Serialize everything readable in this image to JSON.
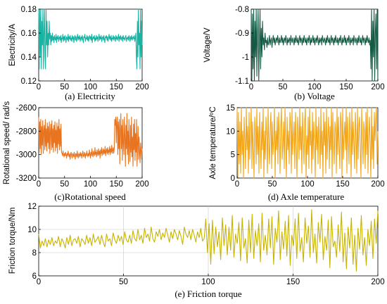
{
  "chart_data": [
    {
      "id": "a",
      "type": "line",
      "caption": "(a) Electricity",
      "ylabel": "Electricity/A",
      "xlim": [
        0,
        200
      ],
      "ylim": [
        0.12,
        0.18
      ],
      "xticks": [
        0,
        50,
        100,
        150,
        200
      ],
      "yticks": [
        0.12,
        0.14,
        0.16,
        0.18
      ],
      "ytick_labels": [
        "0.12",
        "0.14",
        "0.16",
        "0.18"
      ],
      "grid": false,
      "color": "#17b3a3",
      "x_range": [
        0,
        200
      ],
      "values": [
        0.18,
        0.13,
        0.18,
        0.14,
        0.18,
        0.13,
        0.17,
        0.15,
        0.18,
        0.13,
        0.16,
        0.18,
        0.14,
        0.13,
        0.18,
        0.15,
        0.17,
        0.14,
        0.16,
        0.15,
        0.17,
        0.155,
        0.16,
        0.15,
        0.158,
        0.153,
        0.16,
        0.154,
        0.157,
        0.152,
        0.158,
        0.155,
        0.154,
        0.159,
        0.152,
        0.157,
        0.155,
        0.158,
        0.153,
        0.156,
        0.157,
        0.154,
        0.158,
        0.152,
        0.156,
        0.155,
        0.159,
        0.153,
        0.157,
        0.154,
        0.158,
        0.155,
        0.152,
        0.157,
        0.156,
        0.154,
        0.159,
        0.153,
        0.157,
        0.155,
        0.158,
        0.154,
        0.156,
        0.153,
        0.158,
        0.155,
        0.157,
        0.152,
        0.156,
        0.158,
        0.154,
        0.157,
        0.153,
        0.156,
        0.159,
        0.154,
        0.157,
        0.155,
        0.158,
        0.153,
        0.156,
        0.157,
        0.154,
        0.158,
        0.155,
        0.152,
        0.157,
        0.156,
        0.159,
        0.153,
        0.156,
        0.155,
        0.158,
        0.154,
        0.157,
        0.153,
        0.156,
        0.158,
        0.155,
        0.157,
        0.154,
        0.159,
        0.152,
        0.156,
        0.157,
        0.155,
        0.158,
        0.153,
        0.156,
        0.154,
        0.158,
        0.155,
        0.157,
        0.153,
        0.156,
        0.159,
        0.154,
        0.157,
        0.155,
        0.158,
        0.153,
        0.156,
        0.157,
        0.154,
        0.158,
        0.155,
        0.152,
        0.157,
        0.156,
        0.158,
        0.154,
        0.157,
        0.153,
        0.156,
        0.159,
        0.155,
        0.157,
        0.154,
        0.158,
        0.153,
        0.156,
        0.155,
        0.158,
        0.154,
        0.157,
        0.156,
        0.153,
        0.158,
        0.155,
        0.157,
        0.154,
        0.156,
        0.159,
        0.153,
        0.157,
        0.155,
        0.158,
        0.154,
        0.156,
        0.157,
        0.153,
        0.158,
        0.155,
        0.156,
        0.154,
        0.157,
        0.158,
        0.153,
        0.156,
        0.155,
        0.157,
        0.154,
        0.158,
        0.156,
        0.153,
        0.157,
        0.155,
        0.158,
        0.154,
        0.156,
        0.157,
        0.155,
        0.158,
        0.153,
        0.156,
        0.16,
        0.14,
        0.13,
        0.17,
        0.14,
        0.18,
        0.15,
        0.16,
        0.13,
        0.18,
        0.14,
        0.17,
        0.15
      ]
    },
    {
      "id": "b",
      "type": "line",
      "caption": "(b) Voltage",
      "ylabel": "Voltage/V",
      "xlim": [
        0,
        200
      ],
      "ylim": [
        -1.1,
        -0.8
      ],
      "xticks": [
        0,
        50,
        100,
        150,
        200
      ],
      "yticks": [
        -1.1,
        -1.0,
        -0.9,
        -0.8
      ],
      "ytick_labels": [
        "-1.1",
        "-1",
        "-0.9",
        "-0.8"
      ],
      "grid": false,
      "color": "#145a45",
      "x_range": [
        0,
        200
      ],
      "values": [
        -0.8,
        -1.1,
        -0.82,
        -1.05,
        -0.8,
        -1.1,
        -0.85,
        -1.0,
        -0.8,
        -1.08,
        -0.9,
        -0.8,
        -1.1,
        -0.95,
        -0.8,
        -1.05,
        -0.88,
        -1.0,
        -0.85,
        -0.95,
        -0.92,
        -0.97,
        -0.9,
        -0.94,
        -0.93,
        -0.96,
        -0.92,
        -0.95,
        -0.94,
        -0.91,
        -0.95,
        -0.93,
        -0.92,
        -0.96,
        -0.93,
        -0.91,
        -0.94,
        -0.92,
        -0.95,
        -0.93,
        -0.92,
        -0.94,
        -0.91,
        -0.93,
        -0.95,
        -0.92,
        -0.94,
        -0.93,
        -0.91,
        -0.94,
        -0.92,
        -0.95,
        -0.93,
        -0.92,
        -0.94,
        -0.91,
        -0.93,
        -0.95,
        -0.92,
        -0.94,
        -0.93,
        -0.92,
        -0.95,
        -0.91,
        -0.93,
        -0.94,
        -0.92,
        -0.93,
        -0.95,
        -0.92,
        -0.94,
        -0.91,
        -0.93,
        -0.94,
        -0.92,
        -0.95,
        -0.93,
        -0.91,
        -0.94,
        -0.92,
        -0.93,
        -0.95,
        -0.92,
        -0.94,
        -0.91,
        -0.93,
        -0.94,
        -0.92,
        -0.95,
        -0.93,
        -0.92,
        -0.94,
        -0.91,
        -0.93,
        -0.95,
        -0.92,
        -0.94,
        -0.93,
        -0.91,
        -0.94,
        -0.92,
        -0.95,
        -0.93,
        -0.92,
        -0.94,
        -0.91,
        -0.93,
        -0.95,
        -0.92,
        -0.94,
        -0.93,
        -0.92,
        -0.95,
        -0.91,
        -0.93,
        -0.94,
        -0.92,
        -0.93,
        -0.95,
        -0.92,
        -0.94,
        -0.91,
        -0.93,
        -0.94,
        -0.92,
        -0.95,
        -0.93,
        -0.91,
        -0.94,
        -0.92,
        -0.93,
        -0.95,
        -0.92,
        -0.94,
        -0.91,
        -0.93,
        -0.94,
        -0.92,
        -0.95,
        -0.93,
        -0.92,
        -0.94,
        -0.91,
        -0.93,
        -0.95,
        -0.92,
        -0.94,
        -0.93,
        -0.91,
        -0.94,
        -0.92,
        -0.95,
        -0.93,
        -0.92,
        -0.94,
        -0.91,
        -0.93,
        -0.95,
        -0.92,
        -0.94,
        -0.93,
        -0.92,
        -0.95,
        -0.91,
        -0.93,
        -0.94,
        -0.92,
        -0.93,
        -0.95,
        -0.92,
        -0.94,
        -0.91,
        -0.93,
        -0.94,
        -0.92,
        -0.95,
        -0.93,
        -0.91,
        -0.94,
        -0.92,
        -0.93,
        -0.95,
        -0.92,
        -0.94,
        -0.91,
        -0.93,
        -0.94,
        -0.92,
        -0.95,
        -0.93,
        -1.05,
        -0.8,
        -1.1,
        -0.85,
        -1.0,
        -0.8,
        -1.1,
        -0.9,
        -0.82,
        -1.05,
        -0.8,
        -1.1
      ]
    },
    {
      "id": "c",
      "type": "line",
      "caption": "(c)Rotational speed",
      "ylabel": "Rotational speed/ rad/s",
      "xlim": [
        0,
        200
      ],
      "ylim": [
        -3200,
        -2600
      ],
      "xticks": [
        0,
        50,
        100,
        150,
        200
      ],
      "yticks": [
        -3200,
        -3000,
        -2800,
        -2600
      ],
      "ytick_labels": [
        "-3200",
        "-3000",
        "-2800",
        "-2600"
      ],
      "grid": false,
      "color": "#e8741f",
      "x_range": [
        0,
        200
      ],
      "values": [
        -2680,
        -2980,
        -2720,
        -2950,
        -2700,
        -3000,
        -2760,
        -2920,
        -2710,
        -2990,
        -2800,
        -2750,
        -2960,
        -2700,
        -2930,
        -2780,
        -2970,
        -2730,
        -2900,
        -2760,
        -2950,
        -2720,
        -2990,
        -2800,
        -2740,
        -2960,
        -2710,
        -2940,
        -2780,
        -2980,
        -2750,
        -2900,
        -2720,
        -2970,
        -2790,
        -2940,
        -2730,
        -2990,
        -2760,
        -2910,
        -2700,
        -2960,
        -2780,
        -2930,
        -2740,
        -2980,
        -2990,
        -3010,
        -2970,
        -3000,
        -3020,
        -2990,
        -3010,
        -2980,
        -3000,
        -3030,
        -2990,
        -3010,
        -2970,
        -3000,
        -3020,
        -2990,
        -3040,
        -3000,
        -2980,
        -3010,
        -3030,
        -2990,
        -3000,
        -3020,
        -2980,
        -3010,
        -3040,
        -2990,
        -3000,
        -3020,
        -2970,
        -3010,
        -3030,
        -2990,
        -3000,
        -3020,
        -2980,
        -3010,
        -2990,
        -3030,
        -3000,
        -2970,
        -3010,
        -3020,
        -2980,
        -3000,
        -3030,
        -2990,
        -3010,
        -2970,
        -3000,
        -3020,
        -2990,
        -3010,
        -2960,
        -3000,
        -3030,
        -2980,
        -3010,
        -2950,
        -3000,
        -3020,
        -2970,
        -2990,
        -3010,
        -2940,
        -3000,
        -2980,
        -3020,
        -2960,
        -2990,
        -3010,
        -2950,
        -3000,
        -2970,
        -3030,
        -2960,
        -2990,
        -2940,
        -3010,
        -2980,
        -2950,
        -3000,
        -2960,
        -2990,
        -2930,
        -3010,
        -2970,
        -2950,
        -2990,
        -2940,
        -3000,
        -2960,
        -2980,
        -2930,
        -3000,
        -2950,
        -2980,
        -2920,
        -2990,
        -2960,
        -2940,
        -2990,
        -2950,
        -2700,
        -2750,
        -2680,
        -2900,
        -2720,
        -2680,
        -3000,
        -2720,
        -2950,
        -2700,
        -3080,
        -2800,
        -2650,
        -2950,
        -2750,
        -3050,
        -2700,
        -2900,
        -3000,
        -2680,
        -2850,
        -3100,
        -2750,
        -2950,
        -2650,
        -3000,
        -2800,
        -3080,
        -2700,
        -2920,
        -3060,
        -2750,
        -2980,
        -2680,
        -3020,
        -2850,
        -3100,
        -2740,
        -2960,
        -2700,
        -3050,
        -2820,
        -2980,
        -2700,
        -3100,
        -2900,
        -2760,
        -3040,
        -2850,
        -2980,
        -3070,
        -2900,
        -2960,
        -3040,
        -2950
      ]
    },
    {
      "id": "d",
      "type": "line",
      "caption": "(d) Axle temperature",
      "ylabel": "Axle temperature/ºC",
      "xlim": [
        0,
        200
      ],
      "ylim": [
        0,
        15
      ],
      "xticks": [
        0,
        50,
        100,
        150,
        200
      ],
      "yticks": [
        0,
        5,
        10,
        15
      ],
      "ytick_labels": [
        "0",
        "5",
        "10",
        "15"
      ],
      "grid": false,
      "color": "#f2a516",
      "x_range": [
        0,
        200
      ],
      "values": [
        15,
        0,
        14,
        3,
        12,
        1,
        15,
        5,
        10,
        0,
        13,
        8,
        2,
        15,
        6,
        11,
        1,
        14,
        4,
        9,
        15,
        2,
        12,
        7,
        0,
        13,
        10,
        3,
        15,
        5,
        11,
        1,
        14,
        8,
        2,
        12,
        6,
        15,
        0,
        10,
        4,
        13,
        9,
        1,
        15,
        7,
        3,
        11,
        14,
        2,
        12,
        5,
        8,
        15,
        0,
        10,
        6,
        13,
        3,
        14,
        9,
        1,
        11,
        15,
        4,
        7,
        12,
        2,
        15,
        8,
        0,
        13,
        6,
        10,
        3,
        14,
        11,
        1,
        15,
        5,
        9,
        12,
        2,
        14,
        7,
        0,
        13,
        10,
        4,
        15,
        6,
        11,
        1,
        14,
        8,
        3,
        12,
        15,
        0,
        9,
        5,
        13,
        2,
        15,
        7,
        10,
        1,
        14,
        4,
        12,
        8,
        0,
        15,
        6,
        11,
        3,
        13,
        9,
        2,
        15,
        5,
        10,
        0,
        14,
        7,
        12,
        1,
        15,
        4,
        9,
        13,
        2,
        11,
        6,
        15,
        0,
        14,
        8,
        3,
        12,
        10,
        1,
        15,
        5,
        13,
        7,
        2,
        14,
        11,
        0,
        15,
        4,
        9,
        12,
        6,
        15,
        1,
        13,
        8,
        3,
        14,
        10,
        0,
        15,
        5,
        12,
        7,
        2,
        14,
        9,
        1,
        15,
        4,
        11,
        13,
        6,
        0,
        15,
        8,
        3,
        12,
        10,
        2,
        14,
        5,
        15,
        1,
        9,
        13,
        7,
        0,
        15,
        4,
        11,
        2,
        14,
        8,
        12,
        15,
        3,
        10
      ]
    },
    {
      "id": "e",
      "type": "line",
      "caption": "(e) Friction torque",
      "ylabel": "Friction torque/Nm",
      "xlim": [
        0,
        200
      ],
      "ylim": [
        6,
        12
      ],
      "xticks": [
        0,
        50,
        100,
        150,
        200
      ],
      "yticks": [
        6,
        8,
        10,
        12
      ],
      "ytick_labels": [
        "6",
        "8",
        "10",
        "12"
      ],
      "grid": true,
      "color": "#c8b400",
      "x_range": [
        0,
        200
      ],
      "values": [
        9.6,
        8.4,
        9.0,
        8.6,
        9.2,
        8.5,
        9.1,
        8.7,
        9.3,
        8.6,
        9.0,
        8.8,
        9.4,
        8.5,
        9.2,
        8.9,
        8.4,
        9.3,
        8.7,
        9.5,
        8.6,
        9.1,
        9.2,
        8.8,
        9.4,
        8.5,
        9.2,
        9.0,
        8.7,
        9.5,
        8.8,
        9.3,
        8.6,
        9.6,
        8.9,
        9.1,
        9.4,
        8.7,
        9.5,
        8.9,
        8.5,
        9.6,
        9.0,
        9.2,
        8.6,
        9.7,
        9.1,
        8.8,
        9.5,
        9.0,
        9.4,
        8.7,
        9.8,
        9.1,
        8.9,
        9.5,
        8.8,
        9.9,
        9.2,
        9.0,
        10.0,
        9.1,
        9.5,
        8.8,
        10.1,
        9.3,
        9.6,
        9.0,
        10.2,
        9.2,
        8.9,
        9.8,
        9.4,
        10.0,
        9.1,
        9.7,
        9.3,
        10.1,
        9.5,
        8.9,
        9.8,
        9.2,
        10.0,
        9.6,
        9.1,
        9.9,
        9.4,
        8.7,
        10.2,
        9.6,
        9.3,
        9.9,
        9.1,
        10.0,
        9.5,
        8.9,
        9.8,
        9.3,
        10.1,
        9.0,
        9.2,
        10.9,
        8.0,
        10.5,
        7.0,
        10.8,
        7.9,
        10.2,
        8.5,
        9.8,
        7.4,
        11.0,
        8.6,
        10.4,
        7.8,
        10.2,
        8.2,
        11.2,
        7.6,
        9.6,
        8.8,
        10.6,
        7.3,
        11.0,
        8.4,
        9.2,
        7.1,
        10.8,
        8.0,
        11.3,
        7.5,
        9.9,
        8.6,
        10.5,
        7.2,
        11.4,
        8.2,
        9.5,
        7.8,
        10.9,
        8.4,
        11.1,
        7.0,
        10.1,
        8.9,
        11.6,
        7.4,
        9.8,
        8.3,
        10.7,
        7.7,
        11.2,
        6.9,
        9.5,
        8.6,
        10.9,
        7.5,
        11.4,
        8.1,
        9.3,
        7.2,
        11.0,
        8.8,
        10.3,
        7.6,
        11.7,
        8.0,
        9.6,
        7.1,
        10.6,
        8.9,
        11.3,
        7.4,
        9.4,
        8.2,
        10.8,
        6.7,
        11.1,
        8.5,
        9.0,
        7.6,
        10.4,
        8.1,
        11.5,
        7.2,
        9.7,
        6.6,
        10.2,
        8.4,
        11.0,
        7.0,
        9.5,
        6.4,
        10.1,
        8.3,
        11.2,
        7.8,
        9.3,
        6.9,
        10.0,
        8.6,
        10.7,
        7.5,
        10.9,
        8.8,
        11.6
      ]
    }
  ]
}
